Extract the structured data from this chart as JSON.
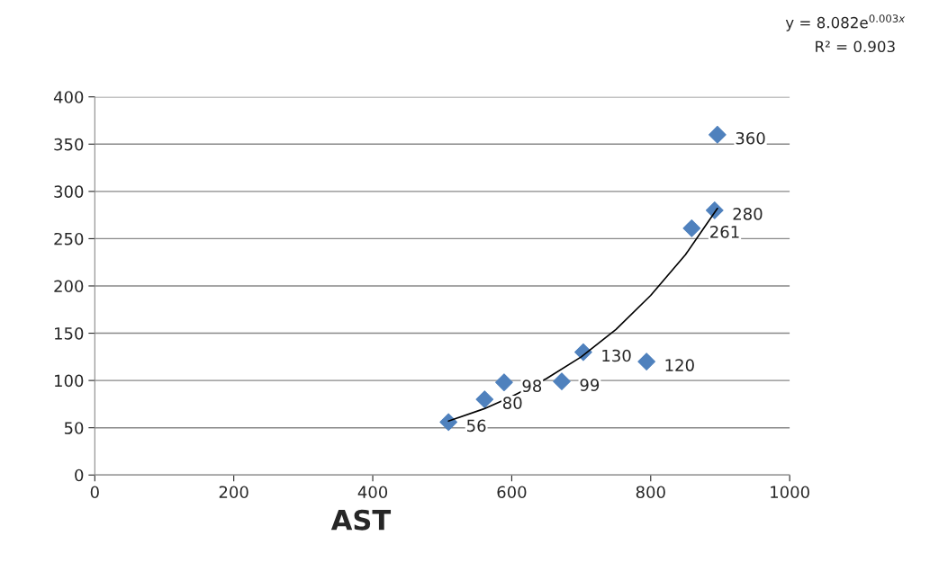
{
  "chart_data": {
    "type": "scatter",
    "xlabel": "AST",
    "annotations": [
      "y = 8.082e$^{0.003x}$",
      "R² = 0.903"
    ],
    "xlim": [
      0,
      1000
    ],
    "xticks": [
      0,
      200,
      400,
      600,
      800,
      1000
    ],
    "ylim": [
      0,
      400
    ],
    "yticks": [
      0,
      50,
      100,
      150,
      200,
      250,
      300,
      350,
      400
    ],
    "grid": "y",
    "legend": false,
    "series": [
      {
        "color": "#4f81bd",
        "marker": "diamond",
        "x": [
          509,
          561,
          589,
          672,
          703,
          794,
          859,
          892,
          896
        ],
        "values": [
          56,
          80,
          98,
          99,
          130,
          120,
          261,
          280,
          360
        ],
        "value_labels": [
          "56",
          "80",
          "98",
          "99",
          "130",
          "120",
          "261",
          "280",
          "360"
        ]
      },
      {
        "type": "line",
        "color": "#000000",
        "marker": "none",
        "line_style": "solid",
        "x": [
          509,
          560,
          600,
          650,
          700,
          750,
          800,
          850,
          896
        ],
        "values": [
          57,
          70,
          83,
          102,
          125,
          154,
          190,
          233,
          282
        ]
      }
    ]
  }
}
